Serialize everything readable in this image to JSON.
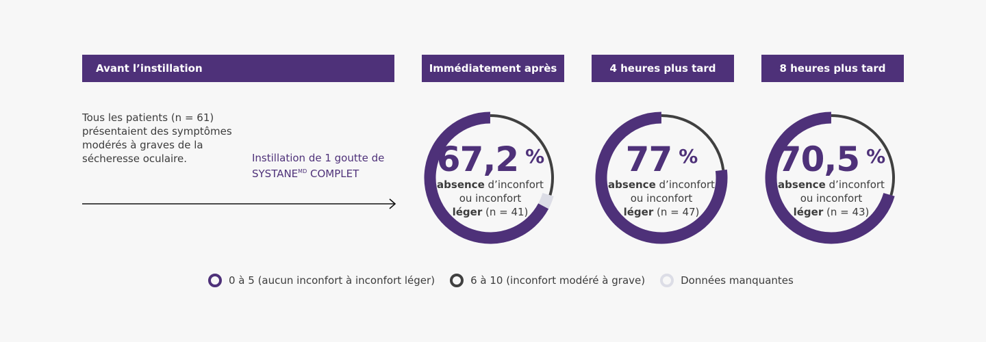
{
  "headers": {
    "before": "Avant l’instillation",
    "immediate": "Immédiatement après",
    "h4": "4 heures plus tard",
    "h8": "8 heures plus tard"
  },
  "intro": "Tous les patients (n = 61) présentaient des symptômes modérés à graves de la sécheresse oculaire.",
  "instillation": {
    "line1": "Instillation de 1 goutte de",
    "brand": "SYSTANE",
    "sup": "MD",
    "line2_rest": " COMPLET"
  },
  "colors": {
    "purple": "#4e3179",
    "dark": "#404040",
    "missing": "#dcdde6"
  },
  "chart_data": {
    "type": "pie",
    "variant": "donut",
    "charts": [
      {
        "pct_label": "67,2",
        "unit": "%",
        "bold1": "absence",
        "text1": " d’inconfort",
        "text2": "ou inconfort",
        "bold3": "léger",
        "text3": " (n = 41)",
        "values": {
          "mild": 67.2,
          "moderate": 29.5,
          "missing": 3.3
        }
      },
      {
        "pct_label": "77",
        "unit": "%",
        "bold1": "absence",
        "text1": " d’inconfort",
        "text2": "ou inconfort",
        "bold3": "léger",
        "text3": " (n = 47)",
        "values": {
          "mild": 77.0,
          "moderate": 23.0,
          "missing": 0
        }
      },
      {
        "pct_label": "70,5",
        "unit": "%",
        "bold1": "absence",
        "text1": " d’inconfort",
        "text2": "ou inconfort",
        "bold3": "léger",
        "text3": " (n = 43)",
        "values": {
          "mild": 70.5,
          "moderate": 29.5,
          "missing": 0
        }
      }
    ],
    "legend": [
      {
        "label": "0 à 5 (aucun inconfort à inconfort léger)",
        "color": "#4e3179"
      },
      {
        "label": "6 à 10 (inconfort modéré à grave)",
        "color": "#404040"
      },
      {
        "label": "Données manquantes",
        "color": "#dcdde6"
      }
    ]
  }
}
